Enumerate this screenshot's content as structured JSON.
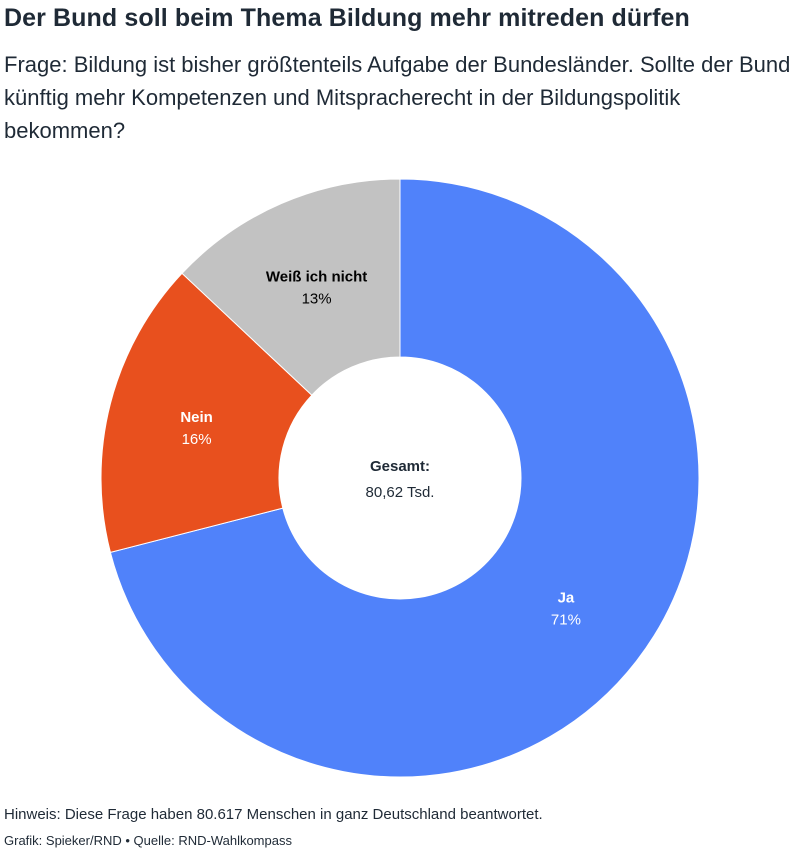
{
  "chart_data": {
    "type": "pie",
    "title": "Der Bund soll beim Thema Bildung mehr mitreden dürfen",
    "subtitle": "Frage: Bildung ist bisher größtenteils Aufgabe der Bundesländer. Sollte der Bund künftig mehr Kompetenzen und Mitspracherecht in der Bildungspolitik bekommen?",
    "center_label": {
      "title": "Gesamt:",
      "value": "80,62 Tsd."
    },
    "slices": [
      {
        "name": "Ja",
        "value": 71,
        "display": "71%",
        "color": "#5082fa",
        "label_color": "#ffffff"
      },
      {
        "name": "Nein",
        "value": 16,
        "display": "16%",
        "color": "#e8501e",
        "label_color": "#ffffff"
      },
      {
        "name": "Weiß ich nicht",
        "value": 13,
        "display": "13%",
        "color": "#c2c2c2",
        "label_color": "#000000"
      }
    ],
    "note": "Hinweis: Diese Frage haben 80.617 Menschen in ganz Deutschland beantwortet.",
    "credit": "Grafik: Spieker/RND • Quelle: RND-Wahlkompass"
  }
}
